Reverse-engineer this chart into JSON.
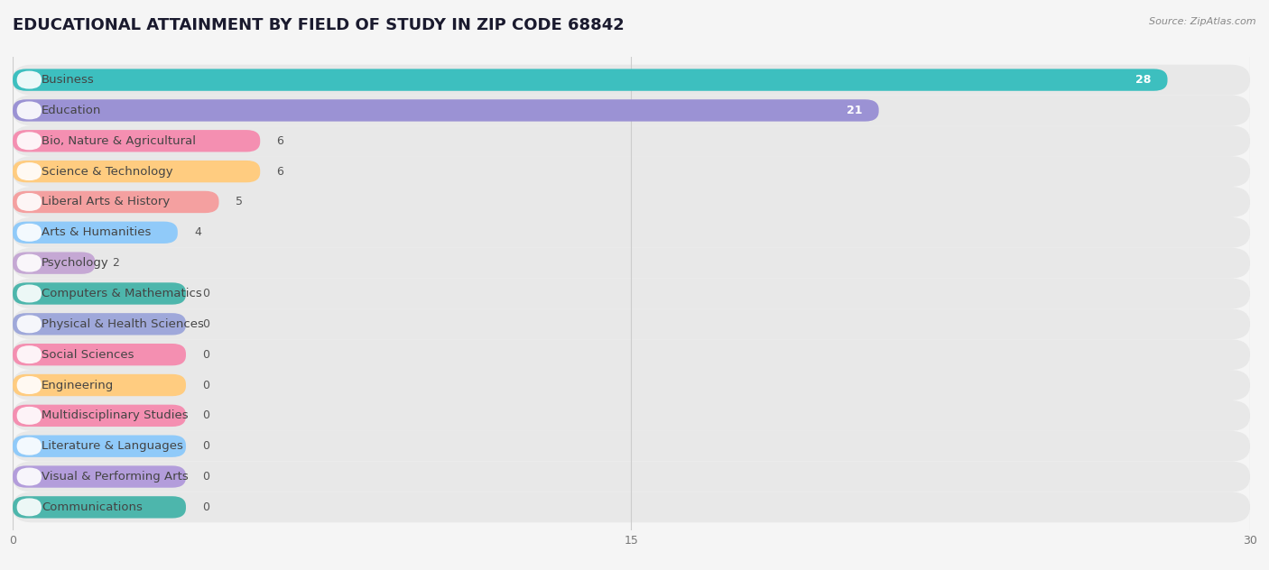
{
  "title": "EDUCATIONAL ATTAINMENT BY FIELD OF STUDY IN ZIP CODE 68842",
  "source": "Source: ZipAtlas.com",
  "categories": [
    "Business",
    "Education",
    "Bio, Nature & Agricultural",
    "Science & Technology",
    "Liberal Arts & History",
    "Arts & Humanities",
    "Psychology",
    "Computers & Mathematics",
    "Physical & Health Sciences",
    "Social Sciences",
    "Engineering",
    "Multidisciplinary Studies",
    "Literature & Languages",
    "Visual & Performing Arts",
    "Communications"
  ],
  "values": [
    28,
    21,
    6,
    6,
    5,
    4,
    2,
    0,
    0,
    0,
    0,
    0,
    0,
    0,
    0
  ],
  "bar_colors": [
    "#3dbfbf",
    "#9b92d4",
    "#f48fb1",
    "#ffcc80",
    "#f4a0a0",
    "#90caf9",
    "#c5a8d4",
    "#4db6ac",
    "#9fa8da",
    "#f48fb1",
    "#ffcc80",
    "#f48fb1",
    "#90caf9",
    "#b39ddb",
    "#4db6ac"
  ],
  "row_bg_color": "#e8e8e8",
  "xlim": [
    0,
    30
  ],
  "xticks": [
    0,
    15,
    30
  ],
  "background_color": "#f5f5f5",
  "title_fontsize": 13,
  "label_fontsize": 9.5,
  "value_fontsize": 9
}
